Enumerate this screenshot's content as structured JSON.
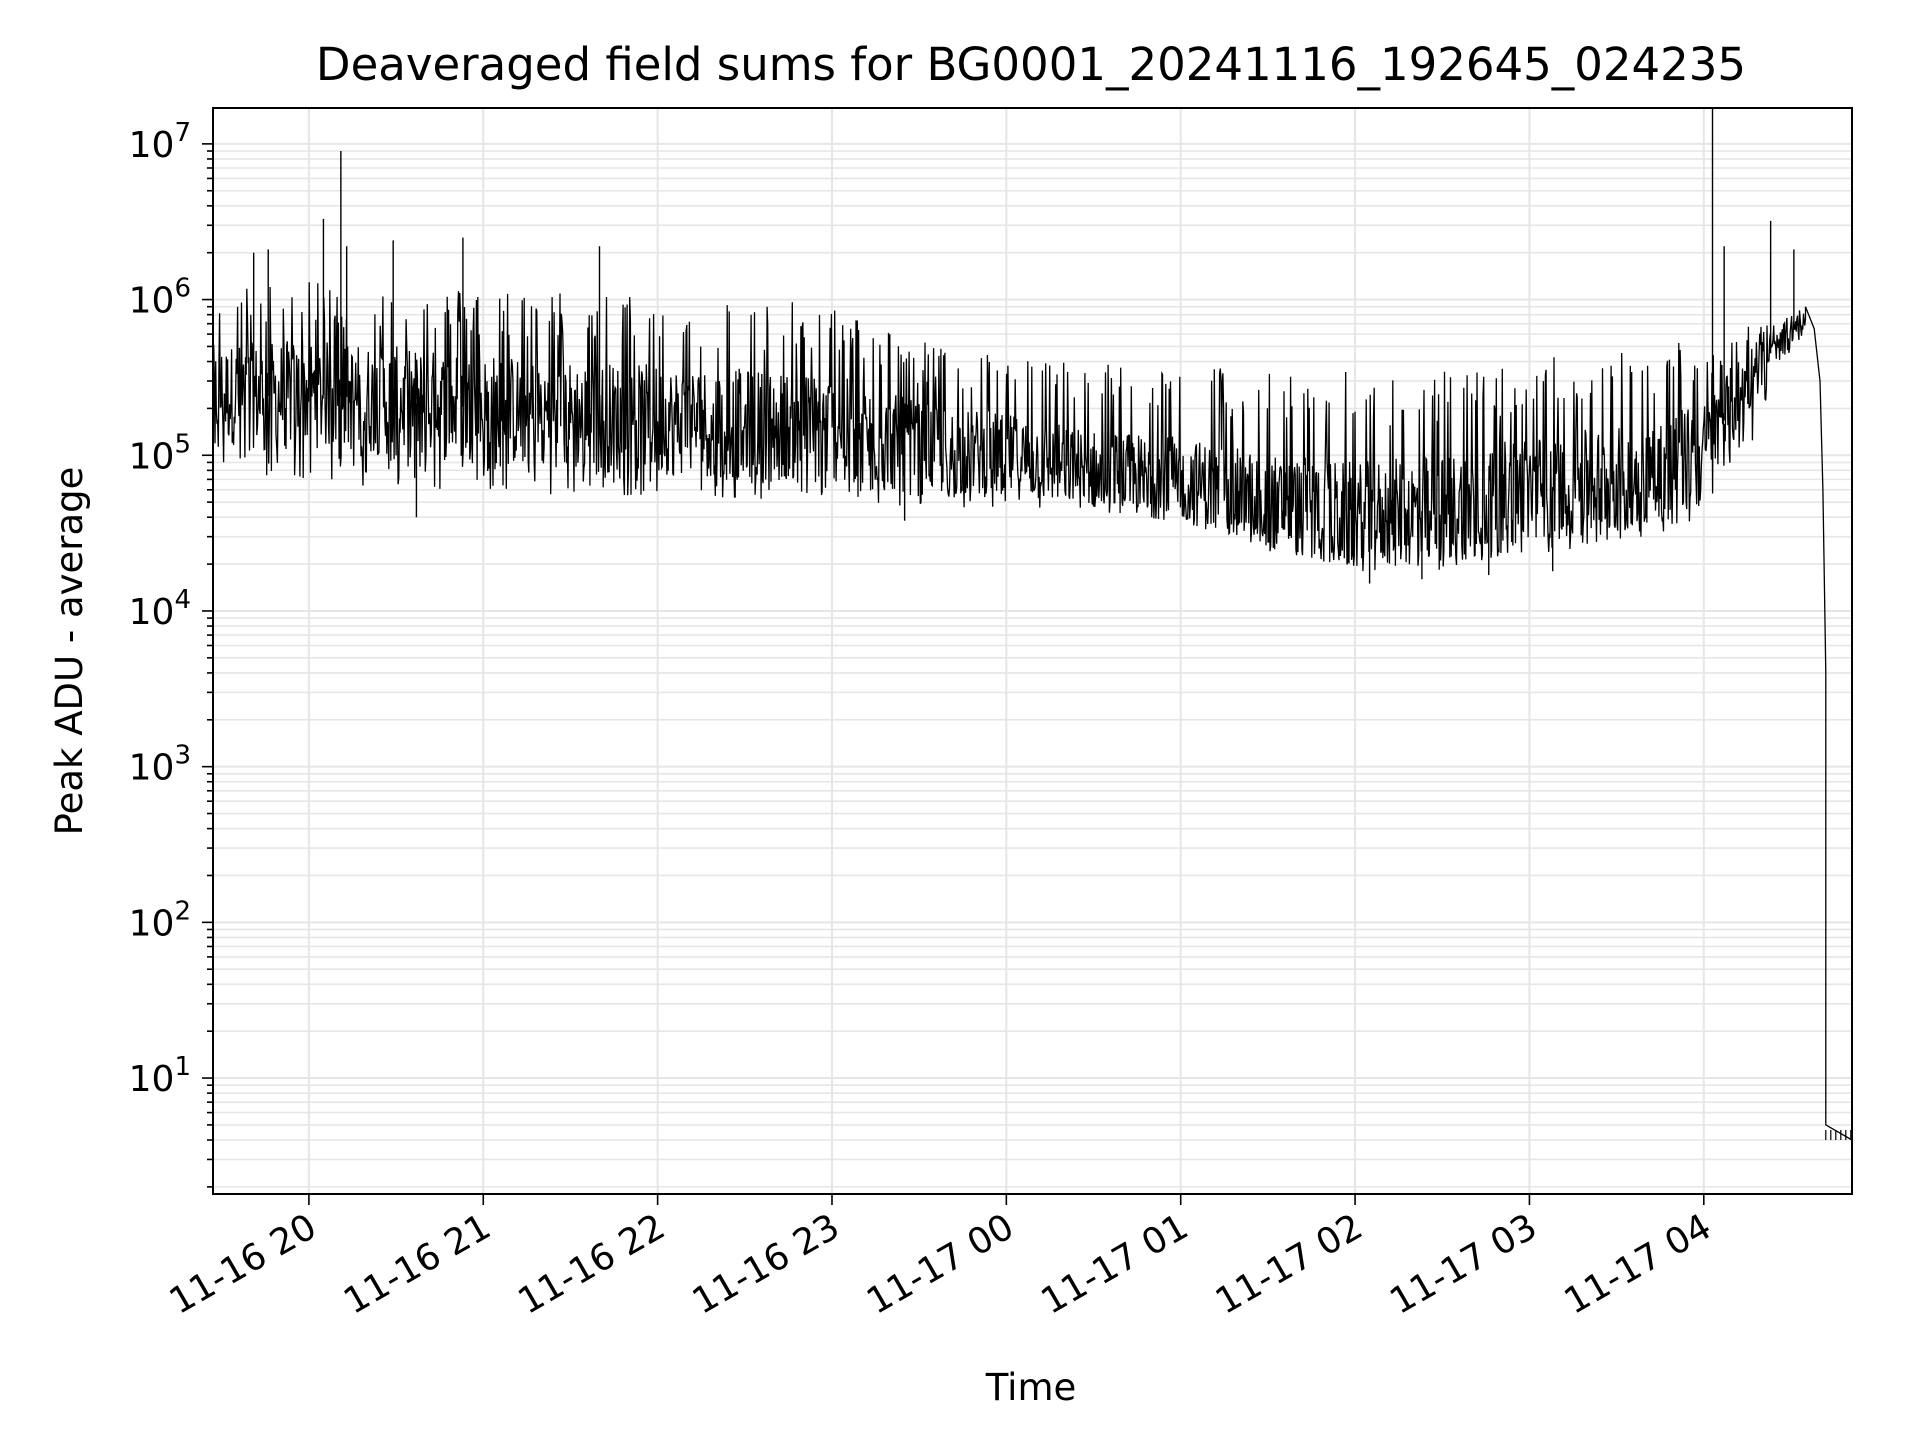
{
  "chart_data": {
    "type": "line",
    "title": "Deaveraged field sums for BG0001_20241116_192645_024235",
    "xlabel": "Time",
    "ylabel": "Peak ADU - average",
    "yscale": "log",
    "xlim": [
      "2024-11-16 19:27",
      "2024-11-17 04:51"
    ],
    "ylim": [
      1.8,
      17000000
    ],
    "grid": true,
    "x_ticks": [
      {
        "value": "2024-11-16 20:00",
        "label": "11-16 20"
      },
      {
        "value": "2024-11-16 21:00",
        "label": "11-16 21"
      },
      {
        "value": "2024-11-16 22:00",
        "label": "11-16 22"
      },
      {
        "value": "2024-11-16 23:00",
        "label": "11-16 23"
      },
      {
        "value": "2024-11-17 00:00",
        "label": "11-17 00"
      },
      {
        "value": "2024-11-17 01:00",
        "label": "11-17 01"
      },
      {
        "value": "2024-11-17 02:00",
        "label": "11-17 02"
      },
      {
        "value": "2024-11-17 03:00",
        "label": "11-17 03"
      },
      {
        "value": "2024-11-17 04:00",
        "label": "11-17 04"
      }
    ],
    "y_ticks": [
      {
        "value": 10,
        "base": "10",
        "exp": "1"
      },
      {
        "value": 100,
        "base": "10",
        "exp": "2"
      },
      {
        "value": 1000,
        "base": "10",
        "exp": "3"
      },
      {
        "value": 10000,
        "base": "10",
        "exp": "4"
      },
      {
        "value": 100000,
        "base": "10",
        "exp": "5"
      },
      {
        "value": 1000000,
        "base": "10",
        "exp": "6"
      },
      {
        "value": 10000000,
        "base": "10",
        "exp": "7"
      }
    ],
    "series": [
      {
        "color": "#000000",
        "envelope": [
          {
            "x": "2024-11-16 19:27",
            "low": 80000,
            "mid": 250000,
            "high": 1100000
          },
          {
            "x": "2024-11-16 19:45",
            "low": 70000,
            "mid": 240000,
            "high": 1300000
          },
          {
            "x": "2024-11-16 20:00",
            "low": 70000,
            "mid": 250000,
            "high": 1300000
          },
          {
            "x": "2024-11-16 20:30",
            "low": 60000,
            "mid": 220000,
            "high": 1200000
          },
          {
            "x": "2024-11-16 21:00",
            "low": 60000,
            "mid": 200000,
            "high": 1200000
          },
          {
            "x": "2024-11-16 21:30",
            "low": 55000,
            "mid": 180000,
            "high": 1150000
          },
          {
            "x": "2024-11-16 22:00",
            "low": 55000,
            "mid": 170000,
            "high": 1050000
          },
          {
            "x": "2024-11-16 22:30",
            "low": 50000,
            "mid": 160000,
            "high": 1000000
          },
          {
            "x": "2024-11-16 23:00",
            "low": 50000,
            "mid": 150000,
            "high": 950000
          },
          {
            "x": "2024-11-16 23:30",
            "low": 45000,
            "mid": 110000,
            "high": 550000
          },
          {
            "x": "2024-11-17 00:00",
            "low": 45000,
            "mid": 100000,
            "high": 450000
          },
          {
            "x": "2024-11-17 00:30",
            "low": 45000,
            "mid": 80000,
            "high": 400000
          },
          {
            "x": "2024-11-17 01:00",
            "low": 40000,
            "mid": 70000,
            "high": 400000
          },
          {
            "x": "2024-11-17 01:30",
            "low": 25000,
            "mid": 50000,
            "high": 350000
          },
          {
            "x": "2024-11-17 02:00",
            "low": 18000,
            "mid": 40000,
            "high": 350000
          },
          {
            "x": "2024-11-17 02:30",
            "low": 18000,
            "mid": 45000,
            "high": 350000
          },
          {
            "x": "2024-11-17 03:00",
            "low": 22000,
            "mid": 60000,
            "high": 420000
          },
          {
            "x": "2024-11-17 03:30",
            "low": 28000,
            "mid": 70000,
            "high": 480000
          },
          {
            "x": "2024-11-17 04:00",
            "low": 35000,
            "mid": 100000,
            "high": 600000
          },
          {
            "x": "2024-11-17 04:15",
            "low": 100000,
            "mid": 300000,
            "high": 700000
          },
          {
            "x": "2024-11-17 04:25",
            "low": 350000,
            "mid": 500000,
            "high": 700000
          },
          {
            "x": "2024-11-17 04:35",
            "low": 600000,
            "mid": 750000,
            "high": 900000
          }
        ],
        "spikes": [
          {
            "x": "2024-11-16 20:11",
            "y": 9000000
          },
          {
            "x": "2024-11-16 20:05",
            "y": 3300000
          },
          {
            "x": "2024-11-16 20:13",
            "y": 2200000
          },
          {
            "x": "2024-11-16 20:29",
            "y": 2400000
          },
          {
            "x": "2024-11-16 20:53",
            "y": 2500000
          },
          {
            "x": "2024-11-16 19:41",
            "y": 2000000
          },
          {
            "x": "2024-11-16 19:46",
            "y": 2100000
          },
          {
            "x": "2024-11-16 21:40",
            "y": 2200000
          },
          {
            "x": "2024-11-17 04:07",
            "y": 2200000
          },
          {
            "x": "2024-11-17 04:23",
            "y": 3200000
          },
          {
            "x": "2024-11-17 04:31",
            "y": 2100000
          },
          {
            "x": "2024-11-17 04:03",
            "y": 20000000
          }
        ],
        "dips": [
          {
            "x": "2024-11-16 20:37",
            "y": 40000
          },
          {
            "x": "2024-11-16 23:25",
            "y": 38000
          },
          {
            "x": "2024-11-17 02:05",
            "y": 15000
          },
          {
            "x": "2024-11-17 02:23",
            "y": 16000
          },
          {
            "x": "2024-11-17 02:46",
            "y": 17000
          },
          {
            "x": "2024-11-17 03:08",
            "y": 18000
          },
          {
            "x": "2024-11-17 00:50",
            "y": 40000
          }
        ],
        "tail": [
          {
            "x": "2024-11-17 04:35",
            "y": 900000
          },
          {
            "x": "2024-11-17 04:38",
            "y": 650000
          },
          {
            "x": "2024-11-17 04:40",
            "y": 300000
          },
          {
            "x": "2024-11-17 04:41",
            "y": 60000
          },
          {
            "x": "2024-11-17 04:42",
            "y": 4000
          },
          {
            "x": "2024-11-17 04:42",
            "y": 5
          },
          {
            "x": "2024-11-17 04:51",
            "y": 4
          }
        ]
      }
    ]
  }
}
